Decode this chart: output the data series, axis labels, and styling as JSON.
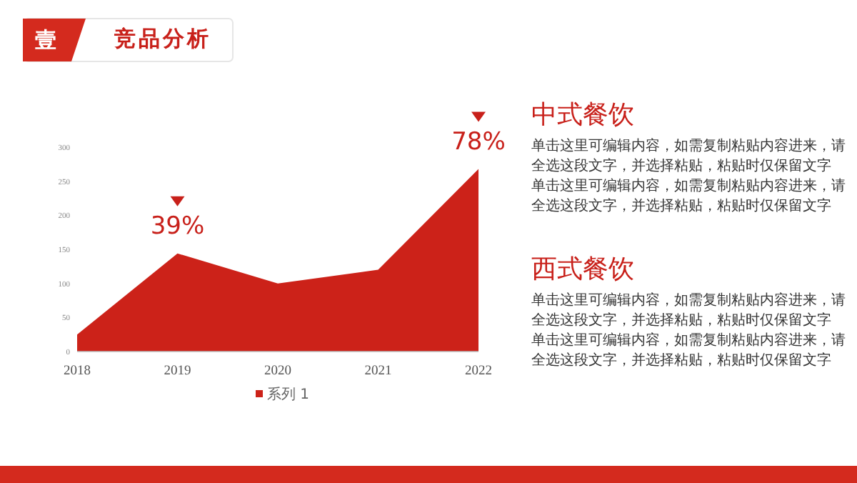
{
  "chart_data": [
    {
      "type": "other",
      "title": "竞品分析",
      "annotations": [
        "壹"
      ]
    },
    {
      "type": "area",
      "categories": [
        "2018",
        "2019",
        "2020",
        "2021",
        "2022"
      ],
      "series": [
        {
          "name": "系列 1",
          "color": "#cc2219",
          "values": [
            25,
            144,
            100,
            120,
            268
          ]
        }
      ],
      "ylim": [
        0,
        300
      ],
      "yticks": [
        0,
        50,
        100,
        150,
        200,
        250,
        300
      ],
      "legend": "bottom",
      "annotations": [
        {
          "text": "39%",
          "x": "2019",
          "y": 144
        },
        {
          "text": "78%",
          "x": "2022",
          "y": 268
        }
      ]
    },
    {
      "type": "other",
      "title": "中式餐饮",
      "annotations": [
        "单击这里可编辑内容，如需复制粘贴内容进来，请全选这段文字，并选择粘贴，粘贴时仅保留文字",
        "单击这里可编辑内容，如需复制粘贴内容进来，请全选这段文字，并选择粘贴，粘贴时仅保留文字"
      ]
    },
    {
      "type": "other",
      "title": "西式餐饮",
      "annotations": [
        "单击这里可编辑内容，如需复制粘贴内容进来，请全选这段文字，并选择粘贴，粘贴时仅保留文字",
        "单击这里可编辑内容，如需复制粘贴内容进来，请全选这段文字，并选择粘贴，粘贴时仅保留文字"
      ]
    }
  ]
}
